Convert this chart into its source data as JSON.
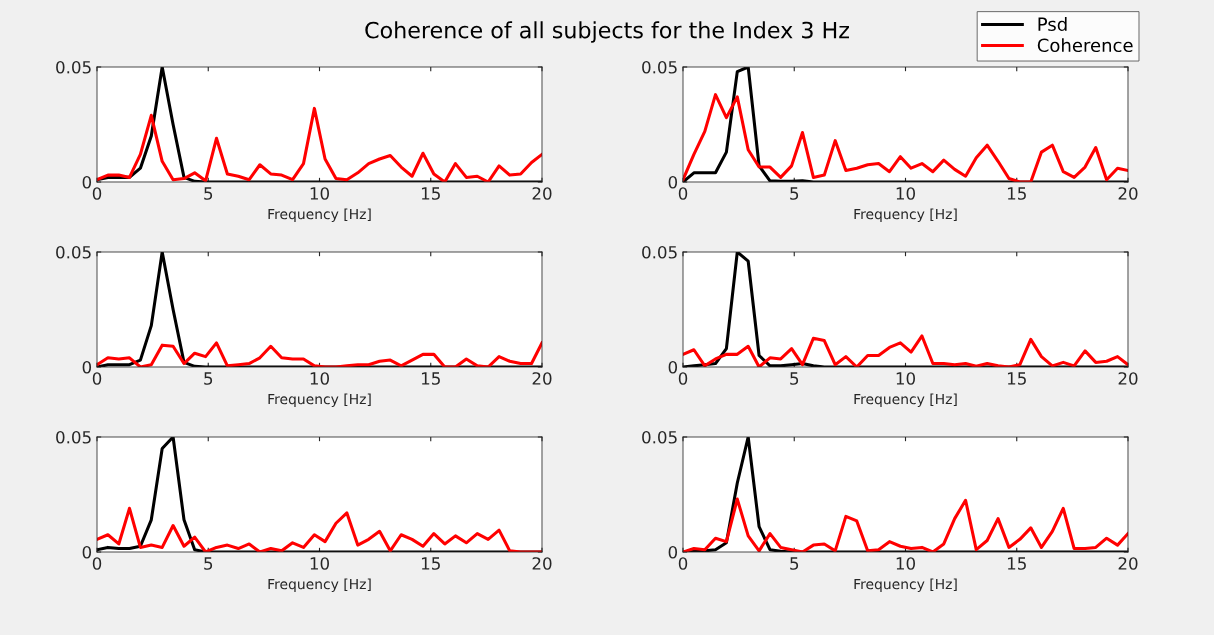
{
  "chart_data": [
    {
      "type": "line",
      "title": "Coherence of all subjects for the Index 3 Hz",
      "xlabel": "Frequency [Hz]",
      "x": [
        0,
        0.49,
        0.98,
        1.46,
        1.95,
        2.44,
        2.93,
        3.42,
        3.91,
        4.39,
        4.88,
        5.37,
        5.86,
        6.35,
        6.84,
        7.32,
        7.81,
        8.3,
        8.79,
        9.28,
        9.77,
        10.25,
        10.74,
        11.23,
        11.72,
        12.21,
        12.7,
        13.18,
        13.67,
        14.16,
        14.65,
        15.14,
        15.63,
        16.11,
        16.6,
        17.09,
        17.58,
        18.07,
        18.55,
        19.04,
        19.53,
        20
      ],
      "xlim": [
        0,
        20
      ],
      "xticks": [
        0,
        5,
        10,
        15,
        20
      ],
      "ylim": [
        0,
        0.05
      ],
      "yticks": [
        0,
        0.05
      ],
      "grid": false,
      "series": [
        {
          "color": "#000000",
          "values": [
            0.001,
            0.002,
            0.002,
            0.002,
            0.006,
            0.02,
            0.05,
            0.025,
            0.002,
            0.0003,
            0,
            0,
            0,
            0,
            0,
            0,
            0,
            0,
            0,
            0,
            0,
            0,
            0,
            0,
            0,
            0,
            0,
            0,
            0,
            0,
            0,
            0,
            0,
            0,
            0,
            0,
            0,
            0,
            0,
            0,
            0,
            0
          ]
        },
        {
          "color": "#ff0000",
          "values": [
            0.001,
            0.003,
            0.003,
            0.002,
            0.012,
            0.029,
            0.009,
            0.001,
            0.0015,
            0.004,
            0.0005,
            0.019,
            0.0035,
            0.0025,
            0.001,
            0.0075,
            0.0035,
            0.003,
            0.001,
            0.008,
            0.032,
            0.01,
            0.0015,
            0.001,
            0.004,
            0.008,
            0.01,
            0.0115,
            0.0065,
            0.0025,
            0.0125,
            0.0035,
            0,
            0.008,
            0.002,
            0.0025,
            0,
            0.007,
            0.003,
            0.0035,
            0.0085,
            0.012
          ]
        }
      ]
    },
    {
      "type": "line",
      "xlabel": "Frequency [Hz]",
      "x": [
        0,
        0.49,
        0.98,
        1.46,
        1.95,
        2.44,
        2.93,
        3.42,
        3.91,
        4.39,
        4.88,
        5.37,
        5.86,
        6.35,
        6.84,
        7.32,
        7.81,
        8.3,
        8.79,
        9.28,
        9.77,
        10.25,
        10.74,
        11.23,
        11.72,
        12.21,
        12.7,
        13.18,
        13.67,
        14.16,
        14.65,
        15.14,
        15.63,
        16.11,
        16.6,
        17.09,
        17.58,
        18.07,
        18.55,
        19.04,
        19.53,
        20
      ],
      "xlim": [
        0,
        20
      ],
      "xticks": [
        0,
        5,
        10,
        15,
        20
      ],
      "ylim": [
        0,
        0.05
      ],
      "yticks": [
        0,
        0.05
      ],
      "grid": false,
      "legend": "top right",
      "series": [
        {
          "name": "Psd",
          "color": "#000000",
          "values": [
            0,
            0.004,
            0.004,
            0.004,
            0.013,
            0.048,
            0.05,
            0.007,
            0.0005,
            0.0003,
            0.0003,
            0.0005,
            0,
            0,
            0,
            0,
            0,
            0,
            0,
            0,
            0,
            0,
            0,
            0,
            0,
            0,
            0,
            0,
            0,
            0,
            0,
            0,
            0,
            0,
            0,
            0,
            0,
            0,
            0,
            0,
            0,
            0
          ]
        },
        {
          "name": "Coherence",
          "color": "#ff0000",
          "values": [
            0.001,
            0.012,
            0.022,
            0.038,
            0.028,
            0.037,
            0.014,
            0.0065,
            0.0065,
            0.002,
            0.007,
            0.0215,
            0.002,
            0.003,
            0.018,
            0.005,
            0.006,
            0.0075,
            0.008,
            0.0045,
            0.011,
            0.006,
            0.008,
            0.0045,
            0.0095,
            0.0055,
            0.0025,
            0.0105,
            0.016,
            0.009,
            0.0015,
            0,
            0,
            0.013,
            0.016,
            0.0045,
            0.002,
            0.0065,
            0.015,
            0.001,
            0.006,
            0.005
          ]
        }
      ]
    },
    {
      "type": "line",
      "xlabel": "Frequency [Hz]",
      "x": [
        0,
        0.49,
        0.98,
        1.46,
        1.95,
        2.44,
        2.93,
        3.42,
        3.91,
        4.39,
        4.88,
        5.37,
        5.86,
        6.35,
        6.84,
        7.32,
        7.81,
        8.3,
        8.79,
        9.28,
        9.77,
        10.25,
        10.74,
        11.23,
        11.72,
        12.21,
        12.7,
        13.18,
        13.67,
        14.16,
        14.65,
        15.14,
        15.63,
        16.11,
        16.6,
        17.09,
        17.58,
        18.07,
        18.55,
        19.04,
        19.53,
        20
      ],
      "xlim": [
        0,
        20
      ],
      "xticks": [
        0,
        5,
        10,
        15,
        20
      ],
      "ylim": [
        0,
        0.05
      ],
      "yticks": [
        0,
        0.05
      ],
      "grid": false,
      "series": [
        {
          "color": "#000000",
          "values": [
            0,
            0.001,
            0.001,
            0.001,
            0.003,
            0.018,
            0.05,
            0.025,
            0.002,
            0.0003,
            0,
            0,
            0,
            0,
            0,
            0,
            0,
            0,
            0,
            0,
            0,
            0,
            0,
            0,
            0,
            0,
            0,
            0,
            0,
            0,
            0,
            0,
            0,
            0,
            0,
            0,
            0,
            0,
            0,
            0,
            0,
            0
          ]
        },
        {
          "color": "#ff0000",
          "values": [
            0.001,
            0.004,
            0.0035,
            0.004,
            0,
            0.001,
            0.0095,
            0.009,
            0.0015,
            0.006,
            0.0045,
            0.0105,
            0.0005,
            0.001,
            0.0015,
            0.004,
            0.009,
            0.004,
            0.0035,
            0.0035,
            0.0005,
            0,
            0,
            0.0005,
            0.001,
            0.001,
            0.0025,
            0.003,
            0.0005,
            0.003,
            0.0055,
            0.0055,
            0,
            0,
            0.0035,
            0.0005,
            0,
            0.0045,
            0.0025,
            0.0015,
            0.0015,
            0.0105
          ]
        }
      ]
    },
    {
      "type": "line",
      "xlabel": "Frequency [Hz]",
      "x": [
        0,
        0.49,
        0.98,
        1.46,
        1.95,
        2.44,
        2.93,
        3.42,
        3.91,
        4.39,
        4.88,
        5.37,
        5.86,
        6.35,
        6.84,
        7.32,
        7.81,
        8.3,
        8.79,
        9.28,
        9.77,
        10.25,
        10.74,
        11.23,
        11.72,
        12.21,
        12.7,
        13.18,
        13.67,
        14.16,
        14.65,
        15.14,
        15.63,
        16.11,
        16.6,
        17.09,
        17.58,
        18.07,
        18.55,
        19.04,
        19.53,
        20
      ],
      "xlim": [
        0,
        20
      ],
      "xticks": [
        0,
        5,
        10,
        15,
        20
      ],
      "ylim": [
        0,
        0.05
      ],
      "yticks": [
        0,
        0.05
      ],
      "grid": false,
      "series": [
        {
          "color": "#000000",
          "values": [
            0,
            0.0005,
            0.001,
            0.0015,
            0.008,
            0.05,
            0.046,
            0.005,
            0.0005,
            0.0005,
            0.001,
            0.0015,
            0.0005,
            0,
            0,
            0,
            0,
            0,
            0,
            0,
            0,
            0,
            0,
            0,
            0,
            0,
            0,
            0,
            0,
            0,
            0,
            0,
            0,
            0,
            0,
            0,
            0,
            0,
            0,
            0,
            0,
            0
          ]
        },
        {
          "color": "#ff0000",
          "values": [
            0.0055,
            0.0075,
            0.0005,
            0.0035,
            0.0055,
            0.0055,
            0.009,
            0,
            0.004,
            0.0035,
            0.008,
            0.001,
            0.0125,
            0.0115,
            0.001,
            0.0045,
            0,
            0.005,
            0.005,
            0.0085,
            0.0105,
            0.0065,
            0.0135,
            0.0015,
            0.0015,
            0.001,
            0.0015,
            0.0003,
            0.0015,
            0.0005,
            0,
            0.001,
            0.012,
            0.0045,
            0.0005,
            0.002,
            0.0005,
            0.007,
            0.002,
            0.0025,
            0.0045,
            0.001
          ]
        }
      ]
    },
    {
      "type": "line",
      "xlabel": "Frequency [Hz]",
      "x": [
        0,
        0.49,
        0.98,
        1.46,
        1.95,
        2.44,
        2.93,
        3.42,
        3.91,
        4.39,
        4.88,
        5.37,
        5.86,
        6.35,
        6.84,
        7.32,
        7.81,
        8.3,
        8.79,
        9.28,
        9.77,
        10.25,
        10.74,
        11.23,
        11.72,
        12.21,
        12.7,
        13.18,
        13.67,
        14.16,
        14.65,
        15.14,
        15.63,
        16.11,
        16.6,
        17.09,
        17.58,
        18.07,
        18.55,
        19.04,
        19.53,
        20
      ],
      "xlim": [
        0,
        20
      ],
      "xticks": [
        0,
        5,
        10,
        15,
        20
      ],
      "ylim": [
        0,
        0.05
      ],
      "yticks": [
        0,
        0.05
      ],
      "grid": false,
      "series": [
        {
          "color": "#000000",
          "values": [
            0.001,
            0.002,
            0.0015,
            0.0015,
            0.0025,
            0.014,
            0.045,
            0.05,
            0.014,
            0.001,
            0,
            0,
            0,
            0,
            0,
            0,
            0,
            0,
            0,
            0,
            0,
            0,
            0,
            0,
            0,
            0,
            0,
            0,
            0,
            0,
            0,
            0,
            0,
            0,
            0,
            0,
            0,
            0,
            0,
            0,
            0,
            0
          ]
        },
        {
          "color": "#ff0000",
          "values": [
            0.0055,
            0.0075,
            0.0035,
            0.019,
            0.002,
            0.003,
            0.002,
            0.0115,
            0.0025,
            0.0065,
            0,
            0.002,
            0.003,
            0.0015,
            0.0035,
            0,
            0.0015,
            0.0005,
            0.004,
            0.002,
            0.0075,
            0.0045,
            0.0125,
            0.017,
            0.003,
            0.0055,
            0.009,
            0.0005,
            0.0075,
            0.0055,
            0.0025,
            0.008,
            0.0035,
            0.007,
            0.004,
            0.008,
            0.0055,
            0.0095,
            0.0005,
            0,
            0,
            0
          ]
        }
      ]
    },
    {
      "type": "line",
      "xlabel": "Frequency [Hz]",
      "x": [
        0,
        0.49,
        0.98,
        1.46,
        1.95,
        2.44,
        2.93,
        3.42,
        3.91,
        4.39,
        4.88,
        5.37,
        5.86,
        6.35,
        6.84,
        7.32,
        7.81,
        8.3,
        8.79,
        9.28,
        9.77,
        10.25,
        10.74,
        11.23,
        11.72,
        12.21,
        12.7,
        13.18,
        13.67,
        14.16,
        14.65,
        15.14,
        15.63,
        16.11,
        16.6,
        17.09,
        17.58,
        18.07,
        18.55,
        19.04,
        19.53,
        20
      ],
      "xlim": [
        0,
        20
      ],
      "xticks": [
        0,
        5,
        10,
        15,
        20
      ],
      "ylim": [
        0,
        0.05
      ],
      "yticks": [
        0,
        0.05
      ],
      "grid": false,
      "series": [
        {
          "color": "#000000",
          "values": [
            0,
            0.0005,
            0.0005,
            0.001,
            0.004,
            0.03,
            0.05,
            0.011,
            0.001,
            0.0003,
            0,
            0,
            0,
            0,
            0,
            0,
            0,
            0,
            0,
            0,
            0,
            0,
            0,
            0,
            0,
            0,
            0,
            0,
            0,
            0,
            0,
            0,
            0,
            0,
            0,
            0,
            0,
            0,
            0,
            0,
            0,
            0
          ]
        },
        {
          "color": "#ff0000",
          "values": [
            0,
            0.0015,
            0.001,
            0.006,
            0.0045,
            0.023,
            0.007,
            0.0005,
            0.008,
            0.002,
            0.001,
            0,
            0.003,
            0.0035,
            0.0005,
            0.0155,
            0.0135,
            0.0005,
            0.001,
            0.0045,
            0.0025,
            0.0015,
            0.002,
            0,
            0.0035,
            0.0145,
            0.0225,
            0.001,
            0.005,
            0.0145,
            0.002,
            0.0055,
            0.0105,
            0.002,
            0.009,
            0.019,
            0.0015,
            0.0015,
            0.002,
            0.006,
            0.003,
            0.008
          ]
        }
      ]
    }
  ]
}
